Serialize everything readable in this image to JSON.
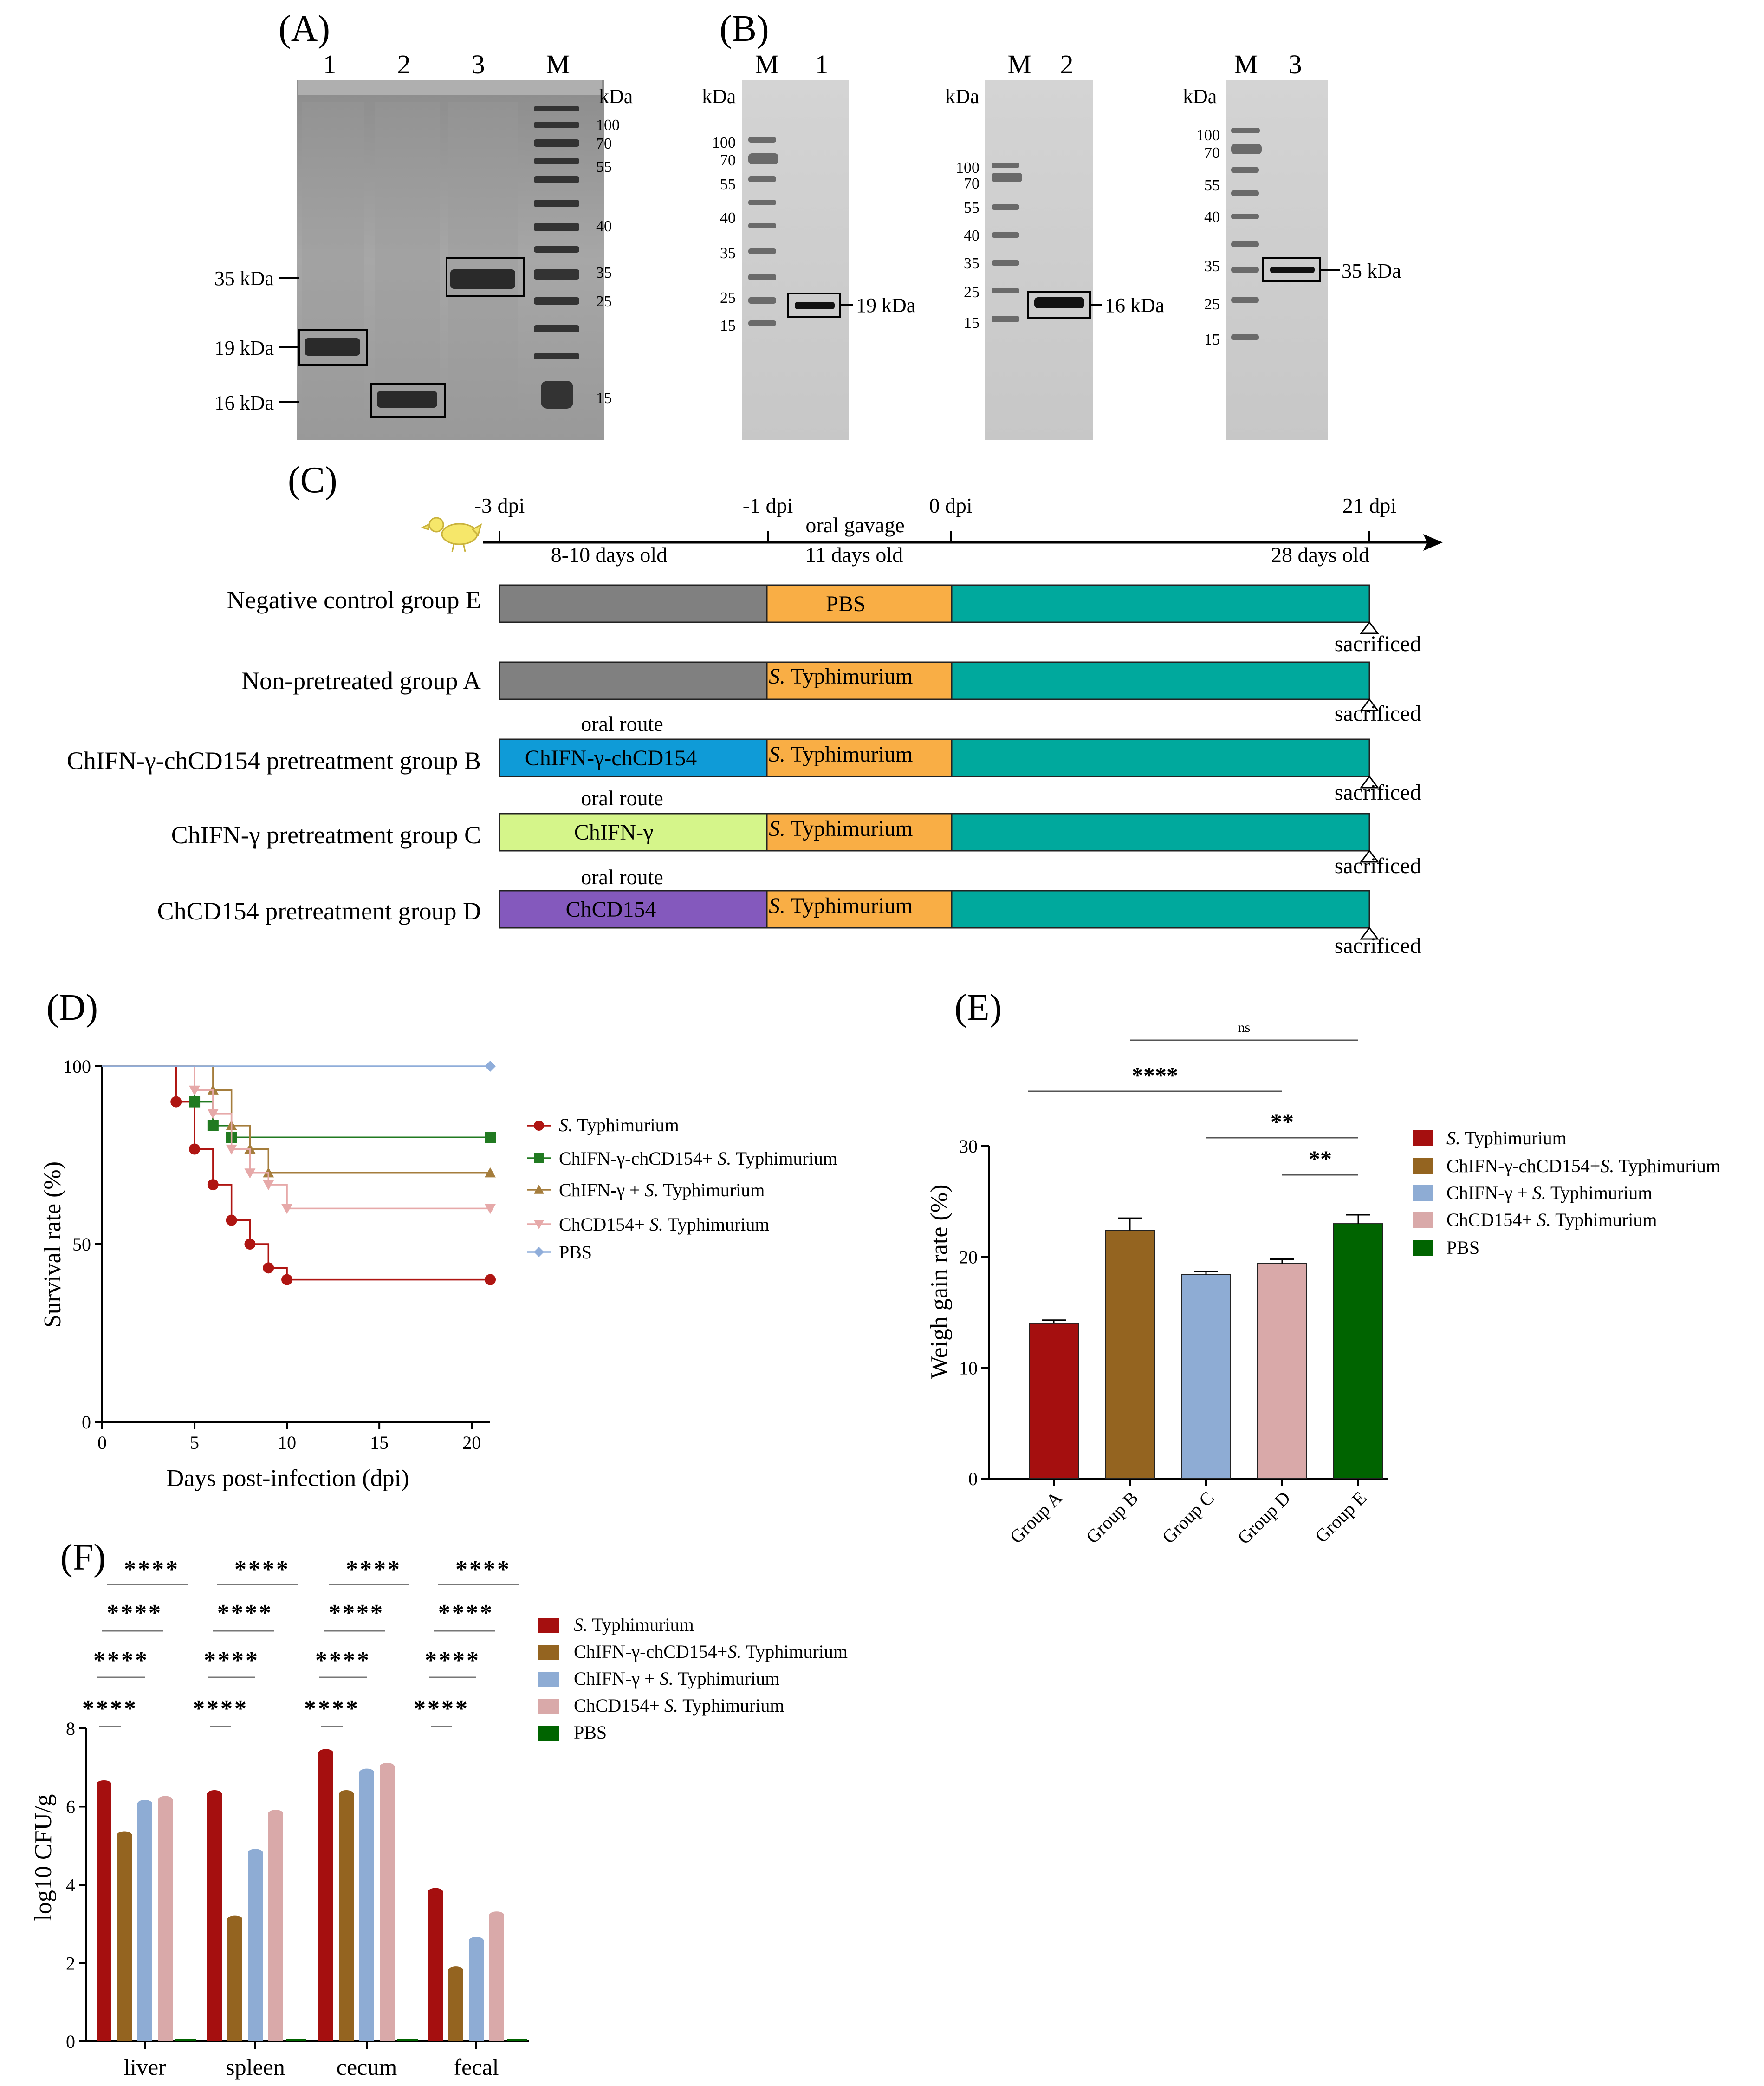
{
  "panels": {
    "A": "(A)",
    "B": "(B)",
    "C": "(C)",
    "D": "(D)",
    "E": "(E)",
    "F": "(F)"
  },
  "gel_a": {
    "lanes": [
      "1",
      "2",
      "3",
      "M"
    ],
    "kda": "kDa",
    "markers": [
      "100",
      "70",
      "55",
      "40",
      "35",
      "25",
      "15"
    ],
    "bands": [
      "35 kDa",
      "19 kDa",
      "16 kDa"
    ]
  },
  "blots_b": [
    {
      "lanes": [
        "M",
        "1"
      ],
      "kda": "kDa",
      "markers": [
        "100",
        "70",
        "55",
        "40",
        "35",
        "25",
        "15"
      ],
      "band": "19 kDa"
    },
    {
      "lanes": [
        "M",
        "2"
      ],
      "kda": "kDa",
      "markers": [
        "100",
        "70",
        "55",
        "40",
        "35",
        "25",
        "15"
      ],
      "band": "16 kDa"
    },
    {
      "lanes": [
        "M",
        "3"
      ],
      "kda": "kDa",
      "markers": [
        "100",
        "70",
        "55",
        "40",
        "35",
        "25",
        "15"
      ],
      "band": "35 kDa"
    }
  ],
  "timeline": {
    "points": [
      "-3 dpi",
      "-1 dpi",
      "0 dpi",
      "21 dpi"
    ],
    "oral_gavage": "oral gavage",
    "ages": [
      "8-10 days old",
      "11 days old",
      "28 days old"
    ],
    "oral_route": "oral route",
    "sacrificed": "sacrificed",
    "colors": {
      "gray": "#808080",
      "orange": "#F9AE45",
      "teal": "#00A99D",
      "blue": "#0F9BD7",
      "lime": "#D5F58A",
      "purple": "#8459BD"
    },
    "groups": [
      {
        "label": "Negative control group E",
        "pre": "",
        "challenge": "PBS"
      },
      {
        "label": "Non-pretreated group A",
        "pre": "",
        "challenge_italic": "S.",
        "challenge_rest": " Typhimurium"
      },
      {
        "label": "ChIFN-γ-chCD154 pretreatment group B",
        "pre": "ChIFN-γ-chCD154",
        "challenge_italic": "S.",
        "challenge_rest": " Typhimurium"
      },
      {
        "label": "ChIFN-γ pretreatment group C",
        "pre": "ChIFN-γ",
        "challenge_italic": "S.",
        "challenge_rest": " Typhimurium"
      },
      {
        "label": "ChCD154 pretreatment group D",
        "pre": "ChCD154",
        "challenge_italic": "S.",
        "challenge_rest": " Typhimurium"
      }
    ]
  },
  "chart_data": [
    {
      "panel": "D",
      "type": "line",
      "step": true,
      "xlabel": "Days post-infection (dpi)",
      "ylabel": "Survival rate (%)",
      "xlim": [
        0,
        21
      ],
      "ylim": [
        0,
        100
      ],
      "xticks": [
        "0",
        "5",
        "10",
        "15",
        "20"
      ],
      "yticks": [
        "0",
        "50",
        "100"
      ],
      "series": [
        {
          "name_italic": "S.",
          "name_rest": " Typhimurium",
          "color": "#AF1512",
          "marker": "circle",
          "x": [
            0,
            4,
            5,
            6,
            7,
            8,
            9,
            10,
            21
          ],
          "y": [
            100,
            90,
            76.7,
            66.7,
            56.7,
            50,
            43.3,
            40,
            40
          ]
        },
        {
          "name_pre": "ChIFN-γ-chCD154+",
          "name_italic": " S.",
          "name_rest": " Typhimurium",
          "color": "#217A21",
          "marker": "square",
          "x": [
            0,
            5,
            6,
            7,
            21
          ],
          "y": [
            100,
            90,
            83.3,
            80,
            80
          ]
        },
        {
          "name_pre": "ChIFN-γ + ",
          "name_italic": "S.",
          "name_rest": " Typhimurium",
          "color": "#A57D3C",
          "marker": "triangle",
          "x": [
            0,
            6,
            7,
            8,
            9,
            21
          ],
          "y": [
            100,
            93.3,
            83.3,
            76.7,
            70,
            70
          ]
        },
        {
          "name_pre": "ChCD154+ ",
          "name_italic": "S.",
          "name_rest": " Typhimurium",
          "color": "#E6A9A9",
          "marker": "tri-down",
          "x": [
            0,
            5,
            6,
            7,
            8,
            9,
            10,
            21
          ],
          "y": [
            100,
            93.3,
            86.7,
            76.7,
            70,
            66.7,
            60,
            60
          ]
        },
        {
          "name_pre": "PBS",
          "color": "#8FADDA",
          "marker": "diamond",
          "x": [
            0,
            21
          ],
          "y": [
            100,
            100
          ]
        }
      ]
    },
    {
      "panel": "E",
      "type": "bar",
      "ylabel": "Weigh gain rate (%)",
      "ylim": [
        0,
        30
      ],
      "yticks": [
        "0",
        "10",
        "20",
        "30"
      ],
      "categories": [
        "Group A",
        "Group B",
        "Group C",
        "Group D",
        "Group E"
      ],
      "values": [
        14.0,
        22.4,
        18.4,
        19.4,
        23.0
      ],
      "errors": [
        0.3,
        1.1,
        0.3,
        0.4,
        0.8
      ],
      "colors": [
        "#A50F0F",
        "#946420",
        "#8EACD4",
        "#D9A9A9",
        "#006400"
      ],
      "legend": [
        {
          "italic": "S.",
          "rest": " Typhimurium"
        },
        {
          "pre": "ChIFN-γ-chCD154+",
          "italic": "S.",
          "rest": " Typhimurium"
        },
        {
          "pre": "ChIFN-γ + ",
          "italic": "S.",
          "rest": " Typhimurium"
        },
        {
          "pre": "ChCD154+ ",
          "italic": "S.",
          "rest": " Typhimurium"
        },
        {
          "pre": "PBS"
        }
      ],
      "significance": [
        {
          "from": 1,
          "to": 4,
          "label": "ns"
        },
        {
          "from": 0,
          "to": 3,
          "label": "****"
        },
        {
          "from": 2,
          "to": 4,
          "label": "**"
        },
        {
          "from": 3,
          "to": 4,
          "label": "**"
        }
      ]
    },
    {
      "panel": "F",
      "type": "bar",
      "ylabel": "log10 CFU/g",
      "ylim": [
        0,
        8
      ],
      "yticks": [
        "0",
        "2",
        "4",
        "6",
        "8"
      ],
      "categories": [
        "liver",
        "spleen",
        "cecum",
        "fecal"
      ],
      "series": [
        {
          "name_italic": "S.",
          "name_rest": " Typhimurium",
          "color": "#A50F0F",
          "values": [
            6.6,
            6.35,
            7.4,
            3.85
          ]
        },
        {
          "name_pre": "ChIFN-γ-chCD154+",
          "name_italic": "S.",
          "name_rest": " Typhimurium",
          "color": "#946420",
          "values": [
            5.3,
            3.15,
            6.35,
            1.85
          ]
        },
        {
          "name_pre": "ChIFN-γ + ",
          "name_italic": "S.",
          "name_rest": " Typhimurium",
          "color": "#8EACD4",
          "values": [
            6.1,
            4.85,
            6.9,
            2.6
          ]
        },
        {
          "name_pre": "ChCD154+ ",
          "name_italic": "S.",
          "name_rest": " Typhimurium",
          "color": "#D9A9A9",
          "values": [
            6.2,
            5.85,
            7.05,
            3.25
          ]
        },
        {
          "name_pre": "PBS",
          "color": "#006400",
          "values": [
            0.02,
            0.02,
            0.02,
            0.02
          ]
        }
      ],
      "significance_label": "****"
    }
  ]
}
